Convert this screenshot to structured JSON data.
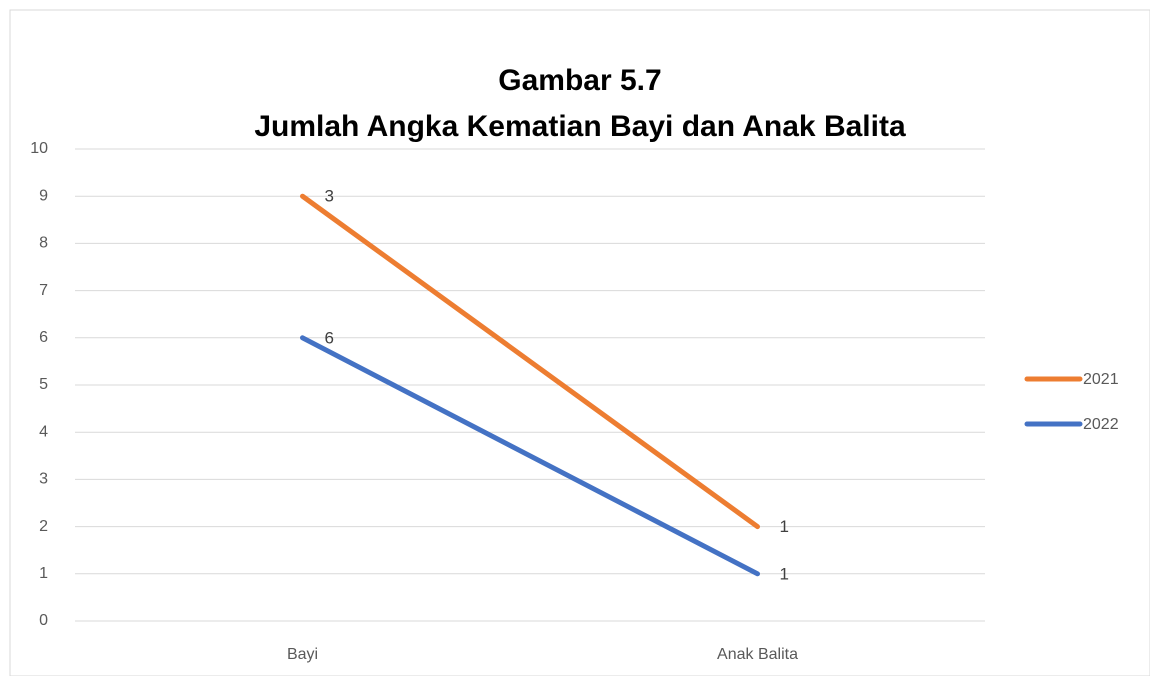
{
  "chart_data": {
    "type": "line",
    "stacked": true,
    "title": "Gambar 5.7",
    "subtitle": "Jumlah Angka Kematian Bayi dan Anak Balita",
    "categories": [
      "Bayi",
      "Anak Balita"
    ],
    "series": [
      {
        "name": "2021",
        "color": "#ed7d31",
        "values": [
          3,
          1
        ]
      },
      {
        "name": "2022",
        "color": "#4472c4",
        "values": [
          6,
          1
        ]
      }
    ],
    "ylim": [
      0,
      10
    ],
    "yticks": [
      0,
      1,
      2,
      3,
      4,
      5,
      6,
      7,
      8,
      9,
      10
    ],
    "grid": true,
    "legend": "right"
  }
}
